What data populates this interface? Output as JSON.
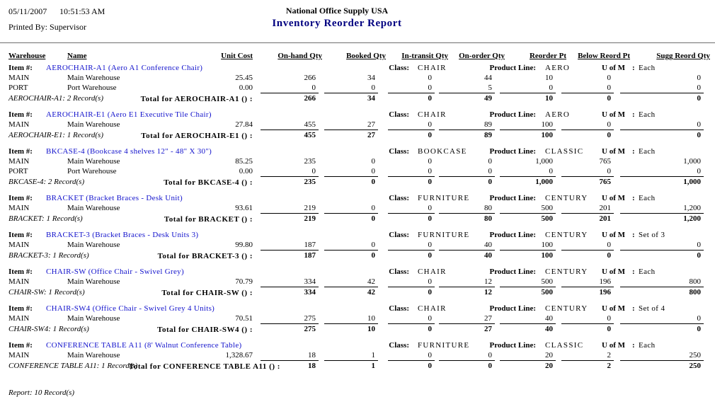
{
  "report": {
    "printed_date": "05/11/2007",
    "printed_time": "10:51:53 AM",
    "printed_by_label": "Printed By:",
    "printed_by": "Supervisor",
    "company": "National Office Supply USA",
    "title": "Inventory Reorder Report",
    "footer": "Report: 10 Record(s)"
  },
  "labels": {
    "item_no": "Item #:",
    "class": "Class:",
    "product_line": "Product Line:",
    "uofm": "U of M",
    "colon": ":"
  },
  "columns": [
    "Warehouse",
    "Name",
    "Unit Cost",
    "On-hand Qty",
    "Booked Qty",
    "In-transit Qty",
    "On-order Qty",
    "Reorder Pt",
    "Below Reord Pt",
    "Sugg Reord Qty"
  ],
  "items": [
    {
      "item_title": "AEROCHAIR-A1 (Aero A1 Conference Chair)",
      "class": "CHAIR",
      "product_line": "AERO",
      "uofm": "Each",
      "rows": [
        {
          "warehouse": "MAIN",
          "name": "Main Warehouse",
          "unit_cost": "25.45",
          "on_hand": "266",
          "booked": "34",
          "in_transit": "0",
          "on_order": "44",
          "reorder_pt": "10",
          "below_reord": "0",
          "sugg_reord": "0"
        },
        {
          "warehouse": "PORT",
          "name": "Port Warehouse",
          "unit_cost": "0.00",
          "on_hand": "0",
          "booked": "0",
          "in_transit": "0",
          "on_order": "5",
          "reorder_pt": "0",
          "below_reord": "0",
          "sugg_reord": "0"
        }
      ],
      "record_note": "AEROCHAIR-A1: 2 Record(s)",
      "total_label": "Total for AEROCHAIR-A1 () :",
      "totals": {
        "on_hand": "266",
        "booked": "34",
        "in_transit": "0",
        "on_order": "49",
        "reorder_pt": "10",
        "below_reord": "0",
        "sugg_reord": "0"
      }
    },
    {
      "item_title": "AEROCHAIR-E1 (Aero E1 Executive Tile Chair)",
      "class": "CHAIR",
      "product_line": "AERO",
      "uofm": "Each",
      "rows": [
        {
          "warehouse": "MAIN",
          "name": "Main Warehouse",
          "unit_cost": "27.84",
          "on_hand": "455",
          "booked": "27",
          "in_transit": "0",
          "on_order": "89",
          "reorder_pt": "100",
          "below_reord": "0",
          "sugg_reord": "0"
        }
      ],
      "record_note": "AEROCHAIR-E1: 1 Record(s)",
      "total_label": "Total for AEROCHAIR-E1 () :",
      "totals": {
        "on_hand": "455",
        "booked": "27",
        "in_transit": "0",
        "on_order": "89",
        "reorder_pt": "100",
        "below_reord": "0",
        "sugg_reord": "0"
      }
    },
    {
      "item_title": "BKCASE-4 (Bookcase 4 shelves 12\" - 48\" X 30\")",
      "class": "BOOKCASE",
      "product_line": "CLASSIC",
      "uofm": "Each",
      "rows": [
        {
          "warehouse": "MAIN",
          "name": "Main Warehouse",
          "unit_cost": "85.25",
          "on_hand": "235",
          "booked": "0",
          "in_transit": "0",
          "on_order": "0",
          "reorder_pt": "1,000",
          "below_reord": "765",
          "sugg_reord": "1,000"
        },
        {
          "warehouse": "PORT",
          "name": "Port Warehouse",
          "unit_cost": "0.00",
          "on_hand": "0",
          "booked": "0",
          "in_transit": "0",
          "on_order": "0",
          "reorder_pt": "0",
          "below_reord": "0",
          "sugg_reord": "0"
        }
      ],
      "record_note": "BKCASE-4: 2 Record(s)",
      "total_label": "Total for BKCASE-4 () :",
      "totals": {
        "on_hand": "235",
        "booked": "0",
        "in_transit": "0",
        "on_order": "0",
        "reorder_pt": "1,000",
        "below_reord": "765",
        "sugg_reord": "1,000"
      }
    },
    {
      "item_title": "BRACKET (Bracket Braces - Desk Unit)",
      "class": "FURNITURE",
      "product_line": "CENTURY",
      "uofm": "Each",
      "rows": [
        {
          "warehouse": "MAIN",
          "name": "Main Warehouse",
          "unit_cost": "93.61",
          "on_hand": "219",
          "booked": "0",
          "in_transit": "0",
          "on_order": "80",
          "reorder_pt": "500",
          "below_reord": "201",
          "sugg_reord": "1,200"
        }
      ],
      "record_note": "BRACKET: 1 Record(s)",
      "total_label": "Total for BRACKET () :",
      "totals": {
        "on_hand": "219",
        "booked": "0",
        "in_transit": "0",
        "on_order": "80",
        "reorder_pt": "500",
        "below_reord": "201",
        "sugg_reord": "1,200"
      }
    },
    {
      "item_title": "BRACKET-3 (Bracket Braces - Desk Units 3)",
      "class": "FURNITURE",
      "product_line": "CENTURY",
      "uofm": "Set of 3",
      "rows": [
        {
          "warehouse": "MAIN",
          "name": "Main Warehouse",
          "unit_cost": "99.80",
          "on_hand": "187",
          "booked": "0",
          "in_transit": "0",
          "on_order": "40",
          "reorder_pt": "100",
          "below_reord": "0",
          "sugg_reord": "0"
        }
      ],
      "record_note": "BRACKET-3: 1 Record(s)",
      "total_label": "Total for BRACKET-3 () :",
      "totals": {
        "on_hand": "187",
        "booked": "0",
        "in_transit": "0",
        "on_order": "40",
        "reorder_pt": "100",
        "below_reord": "0",
        "sugg_reord": "0"
      }
    },
    {
      "item_title": "CHAIR-SW (Office Chair - Swivel Grey)",
      "class": "CHAIR",
      "product_line": "CENTURY",
      "uofm": "Each",
      "rows": [
        {
          "warehouse": "MAIN",
          "name": "Main Warehouse",
          "unit_cost": "70.79",
          "on_hand": "334",
          "booked": "42",
          "in_transit": "0",
          "on_order": "12",
          "reorder_pt": "500",
          "below_reord": "196",
          "sugg_reord": "800"
        }
      ],
      "record_note": "CHAIR-SW: 1 Record(s)",
      "total_label": "Total for CHAIR-SW () :",
      "totals": {
        "on_hand": "334",
        "booked": "42",
        "in_transit": "0",
        "on_order": "12",
        "reorder_pt": "500",
        "below_reord": "196",
        "sugg_reord": "800"
      }
    },
    {
      "item_title": "CHAIR-SW4 (Office Chair - Swivel Grey 4 Units)",
      "class": "CHAIR",
      "product_line": "CENTURY",
      "uofm": "Set of 4",
      "rows": [
        {
          "warehouse": "MAIN",
          "name": "Main Warehouse",
          "unit_cost": "70.51",
          "on_hand": "275",
          "booked": "10",
          "in_transit": "0",
          "on_order": "27",
          "reorder_pt": "40",
          "below_reord": "0",
          "sugg_reord": "0"
        }
      ],
      "record_note": "CHAIR-SW4: 1 Record(s)",
      "total_label": "Total for CHAIR-SW4 () :",
      "totals": {
        "on_hand": "275",
        "booked": "10",
        "in_transit": "0",
        "on_order": "27",
        "reorder_pt": "40",
        "below_reord": "0",
        "sugg_reord": "0"
      }
    },
    {
      "item_title": "CONFERENCE TABLE A11 (8' Walnut Conference Table)",
      "class": "FURNITURE",
      "product_line": "CLASSIC",
      "uofm": "Each",
      "rows": [
        {
          "warehouse": "MAIN",
          "name": "Main Warehouse",
          "unit_cost": "1,328.67",
          "on_hand": "18",
          "booked": "1",
          "in_transit": "0",
          "on_order": "0",
          "reorder_pt": "20",
          "below_reord": "2",
          "sugg_reord": "250"
        }
      ],
      "record_note": "CONFERENCE TABLE A11: 1 Record(s)",
      "total_label": "Total for CONFERENCE TABLE A11 () :",
      "totals": {
        "on_hand": "18",
        "booked": "1",
        "in_transit": "0",
        "on_order": "0",
        "reorder_pt": "20",
        "below_reord": "2",
        "sugg_reord": "250"
      }
    }
  ]
}
